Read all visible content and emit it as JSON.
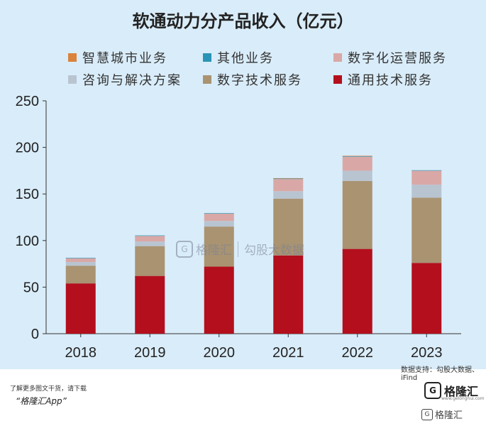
{
  "chart_data": {
    "type": "bar",
    "stacked": true,
    "title": "软通动力分产品收入（亿元）",
    "categories": [
      "2018",
      "2019",
      "2020",
      "2021",
      "2022",
      "2023"
    ],
    "ylim": [
      0,
      250
    ],
    "yticks": [
      0,
      50,
      100,
      150,
      200,
      250
    ],
    "grid": false,
    "legend_position": "top",
    "series": [
      {
        "name": "通用技术服务",
        "color": "#b30f1d",
        "values": [
          54,
          62,
          72,
          84,
          91,
          76
        ]
      },
      {
        "name": "数字技术服务",
        "color": "#a99371",
        "values": [
          19,
          32,
          43,
          61,
          73,
          70
        ]
      },
      {
        "name": "咨询与解决方案",
        "color": "#b9c4d1",
        "values": [
          4,
          5,
          6,
          8,
          11,
          14
        ]
      },
      {
        "name": "数字化运营服务",
        "color": "#d9a8a6",
        "values": [
          4,
          6,
          8,
          13,
          15,
          15
        ]
      },
      {
        "name": "其他业务",
        "color": "#2a94b6",
        "values": [
          0.5,
          0.5,
          0.5,
          0.5,
          0.5,
          0.5
        ]
      },
      {
        "name": "智慧城市业务",
        "color": "#d9833d",
        "values": [
          0,
          0,
          0,
          0.5,
          0.5,
          0
        ]
      }
    ],
    "legend_order": [
      "智慧城市业务",
      "其他业务",
      "数字化运营服务",
      "咨询与解决方案",
      "数字技术服务",
      "通用技术服务"
    ]
  },
  "source": "数据支持：勾股大数据、iFind",
  "footer": {
    "note": "了解更多图文干货，请下载",
    "app": "“格隆汇App”",
    "logo_text": "格隆汇",
    "logo_sub": "www.gelonghui.com"
  },
  "watermark": {
    "brand": "格隆汇",
    "partner": "勾股大数据",
    "bottom": "格隆汇"
  }
}
